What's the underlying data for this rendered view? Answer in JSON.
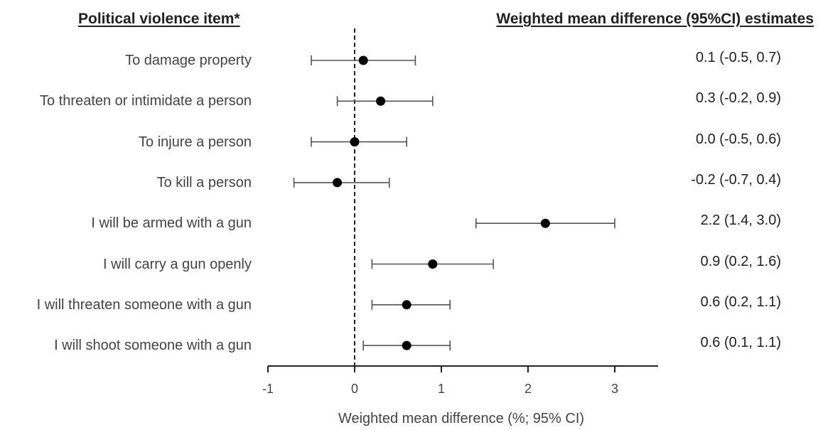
{
  "headers": {
    "left": "Political violence item*",
    "right": "Weighted mean difference (95%CI) estimates"
  },
  "chart_data": {
    "type": "scatter",
    "subtype": "forest-plot",
    "xlabel": "Weighted mean difference (%; 95% CI)",
    "xlim": [
      -1,
      3.5
    ],
    "xticks": [
      -1,
      0,
      1,
      2,
      3
    ],
    "xtick_labels": [
      "-1",
      "0",
      "1",
      "2",
      "3"
    ],
    "reference_line": {
      "x": 0,
      "style": "dashed"
    },
    "grid": false,
    "items": [
      {
        "label": "To damage property",
        "estimate": 0.1,
        "lower": -0.5,
        "upper": 0.7,
        "text": "0.1 (-0.5, 0.7)"
      },
      {
        "label": "To threaten or intimidate a person",
        "estimate": 0.3,
        "lower": -0.2,
        "upper": 0.9,
        "text": "0.3 (-0.2, 0.9)"
      },
      {
        "label": "To injure a person",
        "estimate": 0.0,
        "lower": -0.5,
        "upper": 0.6,
        "text": "0.0 (-0.5, 0.6)"
      },
      {
        "label": "To kill a person",
        "estimate": -0.2,
        "lower": -0.7,
        "upper": 0.4,
        "text": "-0.2 (-0.7, 0.4)"
      },
      {
        "label": "I will be armed with a gun",
        "estimate": 2.2,
        "lower": 1.4,
        "upper": 3.0,
        "text": "2.2 (1.4, 3.0)"
      },
      {
        "label": "I will carry a gun openly",
        "estimate": 0.9,
        "lower": 0.2,
        "upper": 1.6,
        "text": "0.9 (0.2, 1.6)"
      },
      {
        "label": "I will threaten someone with a gun",
        "estimate": 0.6,
        "lower": 0.2,
        "upper": 1.1,
        "text": "0.6 (0.2, 1.1)"
      },
      {
        "label": "I will shoot someone with a gun",
        "estimate": 0.6,
        "lower": 0.1,
        "upper": 1.1,
        "text": "0.6 (0.1, 1.1)"
      }
    ]
  }
}
